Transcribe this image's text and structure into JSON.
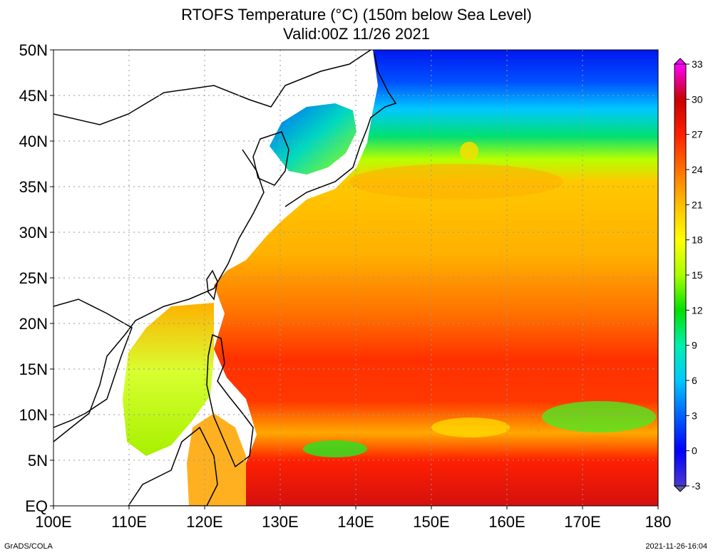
{
  "title": "RTOFS Temperature (°C) (150m below Sea Level)",
  "subtitle": "Valid:00Z 11/26 2021",
  "map": {
    "lon_range": [
      100,
      180
    ],
    "lat_range": [
      0,
      50
    ],
    "x_ticks": [
      "100E",
      "110E",
      "120E",
      "130E",
      "140E",
      "150E",
      "160E",
      "170E",
      "180"
    ],
    "y_ticks": [
      "EQ",
      "5N",
      "10N",
      "15N",
      "20N",
      "25N",
      "30N",
      "35N",
      "40N",
      "45N",
      "50N"
    ],
    "grid": "dotted",
    "colorbar": {
      "ticks": [
        "-3",
        "0",
        "3",
        "6",
        "9",
        "12",
        "15",
        "18",
        "21",
        "24",
        "27",
        "30",
        "33"
      ],
      "colors": [
        "#4a3ad0",
        "#0000ff",
        "#0050ff",
        "#00b4ff",
        "#00f0d0",
        "#00e000",
        "#9aff00",
        "#ffff00",
        "#ffc800",
        "#ff8000",
        "#ff2800",
        "#d20000",
        "#ff00ff"
      ]
    }
  },
  "footer_left": "GrADS/COLA",
  "footer_right": "2021-11-26-16:04"
}
